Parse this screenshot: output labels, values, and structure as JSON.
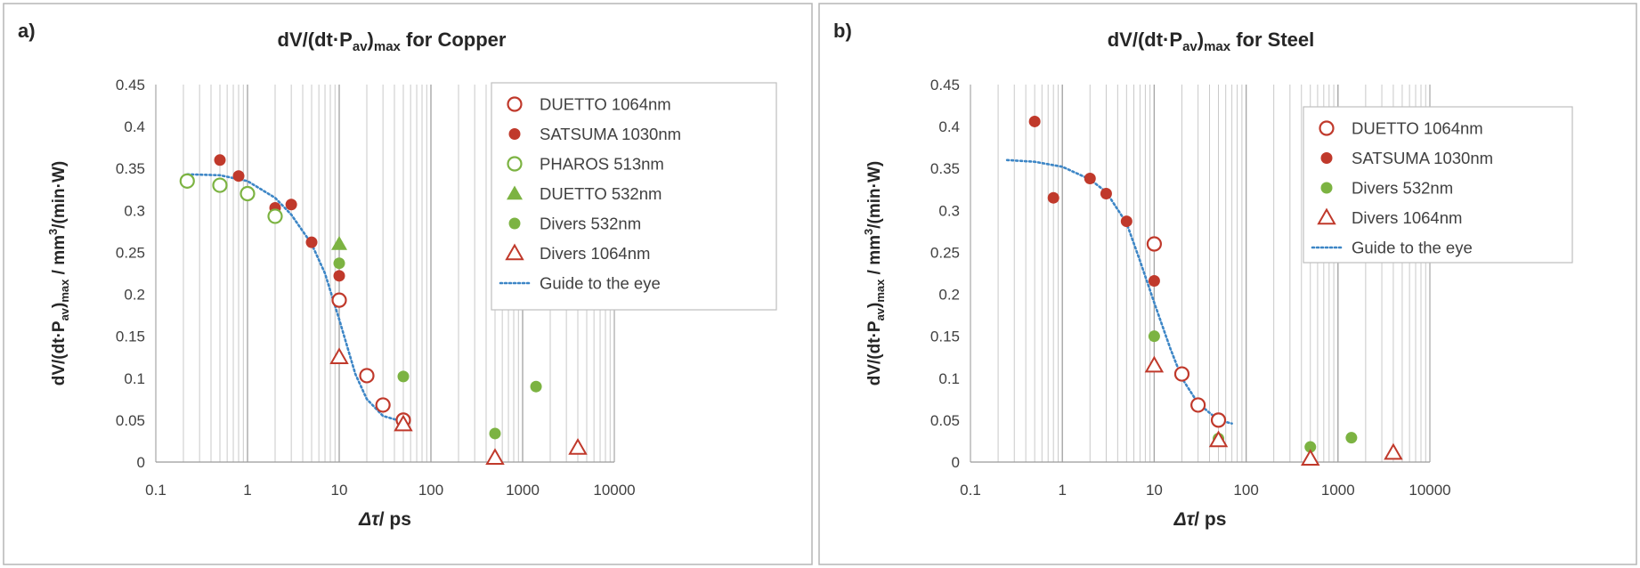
{
  "chart_data": [
    {
      "type": "scatter",
      "panel_label": "a)",
      "title": {
        "main": "dV/(dt·P",
        "sub1": "av",
        "mid": ")",
        "sub2": "max",
        "tail": " for Copper"
      },
      "ylabel": {
        "a": "dV/(dt·P",
        "sub1": "av",
        "b": ")",
        "sub2": "max",
        "c": "  / mm",
        "sup": "3",
        "d": "/(min·W)"
      },
      "xlabel": {
        "sym": "Δτ",
        "rest": "/ ps"
      },
      "x_scale": "log",
      "xlim": [
        0.1,
        10000
      ],
      "ylim": [
        0,
        0.45
      ],
      "y_ticks": [
        "0",
        "0.05",
        "0.1",
        "0.15",
        "0.2",
        "0.25",
        "0.3",
        "0.35",
        "0.4",
        "0.45"
      ],
      "x_ticks": [
        "0.1",
        "1",
        "10",
        "100",
        "1000",
        "10000"
      ],
      "grid": "vertical log minor + major",
      "legend_position": "top-right",
      "series": [
        {
          "name": "DUETTO 1064nm",
          "marker": "open-circle",
          "color": "#c0392b",
          "points": [
            [
              10,
              0.193
            ],
            [
              20,
              0.103
            ],
            [
              30,
              0.068
            ],
            [
              50,
              0.05
            ]
          ]
        },
        {
          "name": "SATSUMA 1030nm",
          "marker": "filled-circle",
          "color": "#c0392b",
          "points": [
            [
              0.5,
              0.36
            ],
            [
              0.8,
              0.341
            ],
            [
              2,
              0.303
            ],
            [
              3,
              0.307
            ],
            [
              5,
              0.262
            ],
            [
              10,
              0.222
            ]
          ]
        },
        {
          "name": "PHAROS 513nm",
          "marker": "open-circle",
          "color": "#7cb342",
          "points": [
            [
              0.22,
              0.335
            ],
            [
              0.5,
              0.33
            ],
            [
              1,
              0.32
            ],
            [
              2,
              0.293
            ]
          ]
        },
        {
          "name": "DUETTO 532nm",
          "marker": "filled-triangle",
          "color": "#7cb342",
          "points": [
            [
              10,
              0.26
            ]
          ]
        },
        {
          "name": "Divers 532nm",
          "marker": "filled-circle",
          "color": "#7cb342",
          "points": [
            [
              10,
              0.237
            ],
            [
              50,
              0.102
            ],
            [
              500,
              0.034
            ],
            [
              1400,
              0.09
            ]
          ]
        },
        {
          "name": "Divers 1064nm",
          "marker": "open-triangle",
          "color": "#c0392b",
          "points": [
            [
              10,
              0.125
            ],
            [
              50,
              0.045
            ],
            [
              500,
              0.005
            ],
            [
              4000,
              0.017
            ]
          ]
        }
      ],
      "guide": {
        "name": "Guide to the eye",
        "color": "#3d86c6",
        "style": "dotted",
        "points": [
          [
            0.22,
            0.343
          ],
          [
            0.5,
            0.342
          ],
          [
            1,
            0.335
          ],
          [
            2,
            0.315
          ],
          [
            3,
            0.295
          ],
          [
            5,
            0.26
          ],
          [
            7,
            0.225
          ],
          [
            10,
            0.17
          ],
          [
            15,
            0.105
          ],
          [
            20,
            0.075
          ],
          [
            30,
            0.055
          ],
          [
            50,
            0.048
          ],
          [
            60,
            0.048
          ]
        ]
      }
    },
    {
      "type": "scatter",
      "panel_label": "b)",
      "title": {
        "main": "dV/(dt·P",
        "sub1": "av",
        "mid": ")",
        "sub2": "max",
        "tail": " for Steel"
      },
      "ylabel": {
        "a": "dV/(dt·P",
        "sub1": "av",
        "b": ")",
        "sub2": "max",
        "c": "  / mm",
        "sup": "3",
        "d": "/(min·W)"
      },
      "xlabel": {
        "sym": "Δτ",
        "rest": "/ ps"
      },
      "x_scale": "log",
      "xlim": [
        0.1,
        10000
      ],
      "ylim": [
        0,
        0.45
      ],
      "y_ticks": [
        "0",
        "0.05",
        "0.1",
        "0.15",
        "0.2",
        "0.25",
        "0.3",
        "0.35",
        "0.4",
        "0.45"
      ],
      "x_ticks": [
        "0.1",
        "1",
        "10",
        "100",
        "1000",
        "10000"
      ],
      "grid": "vertical log minor + major",
      "legend_position": "top-right",
      "series": [
        {
          "name": "DUETTO 1064nm",
          "marker": "open-circle",
          "color": "#c0392b",
          "points": [
            [
              10,
              0.26
            ],
            [
              20,
              0.105
            ],
            [
              30,
              0.068
            ],
            [
              50,
              0.05
            ]
          ]
        },
        {
          "name": "SATSUMA 1030nm",
          "marker": "filled-circle",
          "color": "#c0392b",
          "points": [
            [
              0.5,
              0.406
            ],
            [
              0.8,
              0.315
            ],
            [
              2,
              0.338
            ],
            [
              3,
              0.32
            ],
            [
              5,
              0.287
            ],
            [
              10,
              0.216
            ]
          ]
        },
        {
          "name": "Divers 532nm",
          "marker": "filled-circle",
          "color": "#7cb342",
          "points": [
            [
              10,
              0.15
            ],
            [
              50,
              0.028
            ],
            [
              500,
              0.018
            ],
            [
              1400,
              0.029
            ]
          ]
        },
        {
          "name": "Divers 1064nm",
          "marker": "open-triangle",
          "color": "#c0392b",
          "points": [
            [
              10,
              0.115
            ],
            [
              50,
              0.026
            ],
            [
              500,
              0.004
            ],
            [
              4000,
              0.011
            ]
          ]
        }
      ],
      "guide": {
        "name": "Guide to the eye",
        "color": "#3d86c6",
        "style": "dotted",
        "points": [
          [
            0.25,
            0.36
          ],
          [
            0.5,
            0.358
          ],
          [
            1,
            0.352
          ],
          [
            2,
            0.337
          ],
          [
            3,
            0.322
          ],
          [
            5,
            0.285
          ],
          [
            7,
            0.24
          ],
          [
            10,
            0.19
          ],
          [
            15,
            0.135
          ],
          [
            20,
            0.1
          ],
          [
            30,
            0.07
          ],
          [
            50,
            0.05
          ],
          [
            70,
            0.046
          ]
        ]
      }
    }
  ]
}
